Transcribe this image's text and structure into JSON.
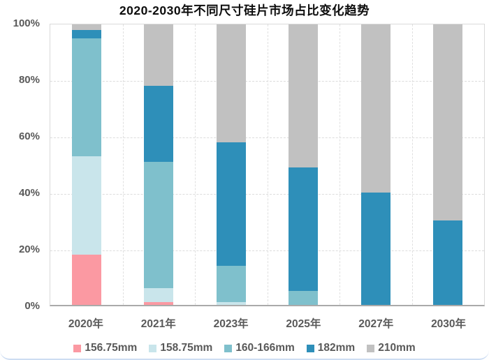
{
  "title": "2020-2030年不同尺寸硅片市场占比变化趋势",
  "colors": {
    "title_text": "#0d0d0d",
    "axis_text": "#595959",
    "grid_line": "#dcdcdc",
    "plot_border": "#d9d9d9",
    "axis_line": "#aaaaaa",
    "card_bottom_border": "#cdddf2",
    "background": "#ffffff"
  },
  "chart_data": {
    "type": "bar",
    "stacked": true,
    "percent_stacked": true,
    "title": "2020-2030年不同尺寸硅片市场占比变化趋势",
    "categories": [
      "2020年",
      "2021年",
      "2023年",
      "2025年",
      "2027年",
      "2030年"
    ],
    "series": [
      {
        "name": "156.75mm",
        "color": "#fb99a2",
        "values": [
          18,
          1,
          0,
          0,
          0,
          0
        ]
      },
      {
        "name": "158.75mm",
        "color": "#c9e5eb",
        "values": [
          35,
          5,
          1,
          0,
          0,
          0
        ]
      },
      {
        "name": "160-166mm",
        "color": "#7fc0cc",
        "values": [
          42,
          45,
          13,
          5,
          0,
          0
        ]
      },
      {
        "name": "182mm",
        "color": "#2e8fb9",
        "values": [
          3,
          27,
          44,
          44,
          40,
          30
        ]
      },
      {
        "name": "210mm",
        "color": "#c1c1c1",
        "values": [
          2,
          22,
          42,
          51,
          60,
          70
        ]
      }
    ],
    "xlabel": "",
    "ylabel": "",
    "ylim": [
      0,
      100
    ],
    "yticks": [
      {
        "label": "0%",
        "value": 0
      },
      {
        "label": "20%",
        "value": 20
      },
      {
        "label": "40%",
        "value": 40
      },
      {
        "label": "60%",
        "value": 60
      },
      {
        "label": "80%",
        "value": 80
      },
      {
        "label": "100%",
        "value": 100
      }
    ],
    "grid": "horizontal and vertical dashed gridlines",
    "legend_position": "bottom"
  }
}
